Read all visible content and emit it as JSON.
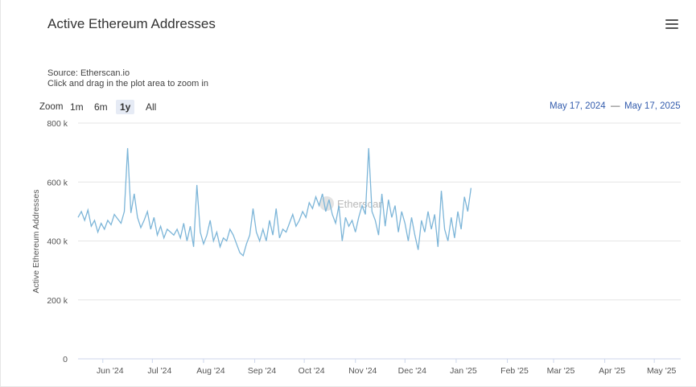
{
  "header": {
    "title": "Active Ethereum Addresses",
    "source": "Source: Etherscan.io",
    "hint": "Click and drag in the plot area to zoom in"
  },
  "zoom": {
    "label": "Zoom",
    "buttons": [
      "1m",
      "6m",
      "1y",
      "All"
    ],
    "active": "1y"
  },
  "range": {
    "from": "May 17, 2024",
    "sep": "—",
    "to": "May 17, 2025"
  },
  "watermark": "Etherscan",
  "colors": {
    "line": "#7cb5d8",
    "grid": "#e6e6e6",
    "accent": "#335cad"
  },
  "chart_data": {
    "type": "line",
    "title": "Active Ethereum Addresses",
    "ylabel": "Active Ethereum Addresses",
    "ylim": [
      0,
      800000
    ],
    "y_ticks": [
      0,
      200000,
      400000,
      600000,
      800000
    ],
    "y_tick_labels": [
      "0",
      "200 k",
      "400 k",
      "600 k",
      "800 k"
    ],
    "x_range": [
      "2024-05-17",
      "2025-05-17"
    ],
    "x_ticks": [
      "2024-06-01",
      "2024-07-01",
      "2024-08-01",
      "2024-09-01",
      "2024-10-01",
      "2024-11-01",
      "2024-12-01",
      "2025-01-01",
      "2025-02-01",
      "2025-03-01",
      "2025-04-01",
      "2025-05-01"
    ],
    "x_tick_labels": [
      "Jun '24",
      "Jul '24",
      "Aug '24",
      "Sep '24",
      "Oct '24",
      "Nov '24",
      "Dec '24",
      "Jan '25",
      "Feb '25",
      "Mar '25",
      "Apr '25",
      "May '25"
    ],
    "grid": true,
    "series": [
      {
        "start": "2024-05-17",
        "step_days": 2,
        "values": [
          480000,
          500000,
          470000,
          505000,
          450000,
          470000,
          430000,
          460000,
          440000,
          470000,
          455000,
          490000,
          475000,
          460000,
          500000,
          715000,
          495000,
          560000,
          480000,
          445000,
          470000,
          500000,
          440000,
          480000,
          420000,
          450000,
          410000,
          440000,
          430000,
          420000,
          440000,
          410000,
          460000,
          400000,
          450000,
          380000,
          590000,
          430000,
          390000,
          420000,
          470000,
          400000,
          430000,
          380000,
          410000,
          400000,
          440000,
          420000,
          390000,
          360000,
          350000,
          390000,
          420000,
          510000,
          430000,
          400000,
          440000,
          400000,
          470000,
          420000,
          510000,
          410000,
          440000,
          430000,
          460000,
          490000,
          450000,
          470000,
          500000,
          480000,
          530000,
          510000,
          550000,
          520000,
          560000,
          500000,
          540000,
          490000,
          460000,
          520000,
          400000,
          480000,
          450000,
          470000,
          430000,
          480000,
          520000,
          490000,
          715000,
          500000,
          470000,
          420000,
          560000,
          450000,
          540000,
          480000,
          520000,
          430000,
          500000,
          460000,
          400000,
          480000,
          420000,
          370000,
          470000,
          430000,
          500000,
          440000,
          490000,
          380000,
          570000,
          440000,
          400000,
          480000,
          410000,
          500000,
          440000,
          550000,
          500000,
          580000
        ]
      }
    ]
  }
}
